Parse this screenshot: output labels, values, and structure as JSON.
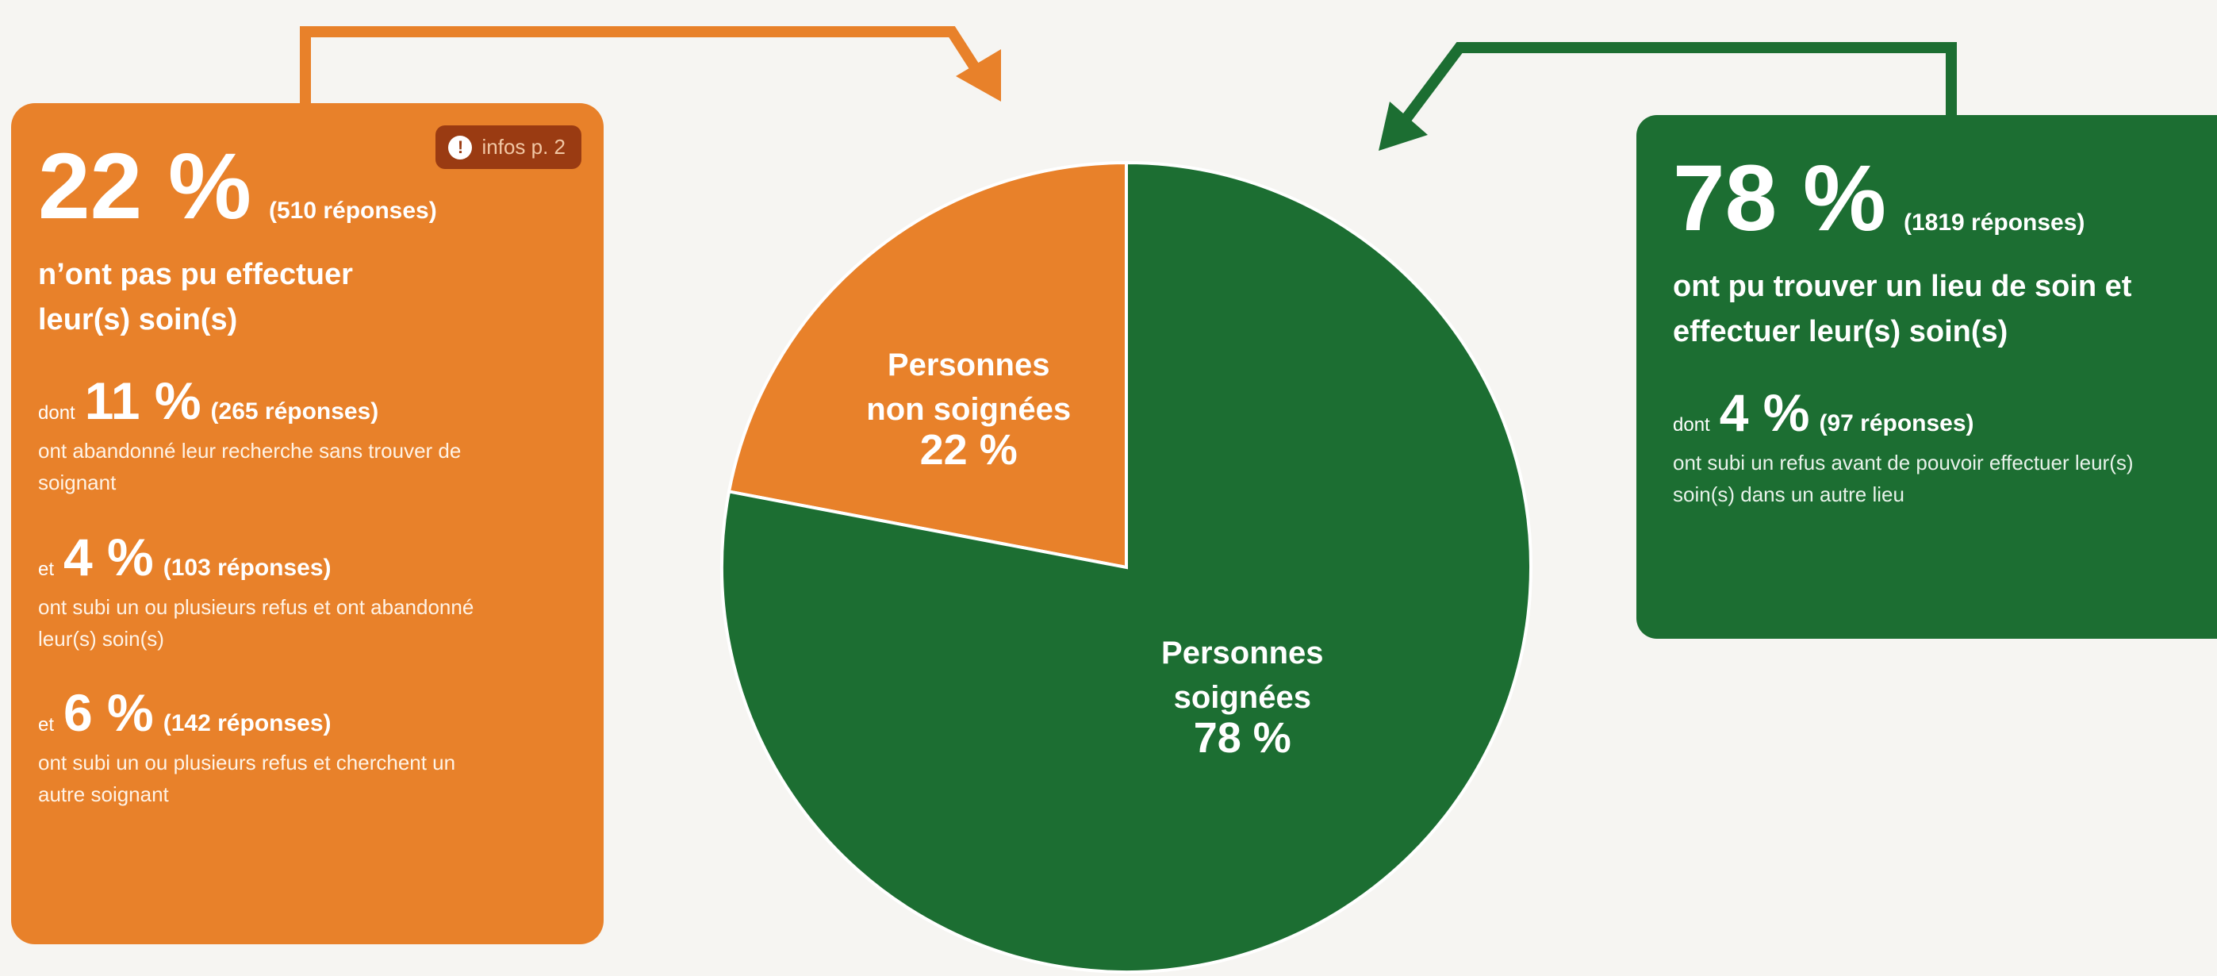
{
  "colors": {
    "orange": "#e8812a",
    "green": "#1c6e32",
    "badge": "#9a3b12"
  },
  "left_panel": {
    "badge_icon": "info-icon",
    "badge_icon_glyph": "!",
    "badge_text": "infos p. 2",
    "main_pct": "22 %",
    "main_count": "(510 réponses)",
    "main_desc": "n’ont pas pu effectuer leur(s) soin(s)",
    "items": [
      {
        "prefix": "dont",
        "pct": "11 %",
        "count": "(265 réponses)",
        "desc": "ont abandonné leur recherche sans trouver de soignant"
      },
      {
        "prefix": "et",
        "pct": "4 %",
        "count": "(103 réponses)",
        "desc": "ont subi un ou plusieurs refus et ont abandonné leur(s) soin(s)"
      },
      {
        "prefix": "et",
        "pct": "6 %",
        "count": "(142 réponses)",
        "desc": "ont subi un ou plusieurs refus et cherchent un autre soignant"
      }
    ]
  },
  "right_panel": {
    "main_pct": "78 %",
    "main_count": "(1819 réponses)",
    "main_desc": "ont pu trouver un lieu de soin et effectuer leur(s) soin(s)",
    "item": {
      "prefix": "dont",
      "pct": "4 %",
      "count": "(97 réponses)",
      "desc": "ont subi un refus avant de pouvoir effectuer leur(s) soin(s) dans un autre lieu"
    }
  },
  "chart_data": {
    "type": "pie",
    "slices": [
      {
        "label_lines": [
          "Personnes",
          "non soignées"
        ],
        "value": 22,
        "value_label": "22 %",
        "color": "#e8812a"
      },
      {
        "label_lines": [
          "Personnes",
          "soignées"
        ],
        "value": 78,
        "value_label": "78 %",
        "color": "#1c6e32"
      }
    ]
  }
}
